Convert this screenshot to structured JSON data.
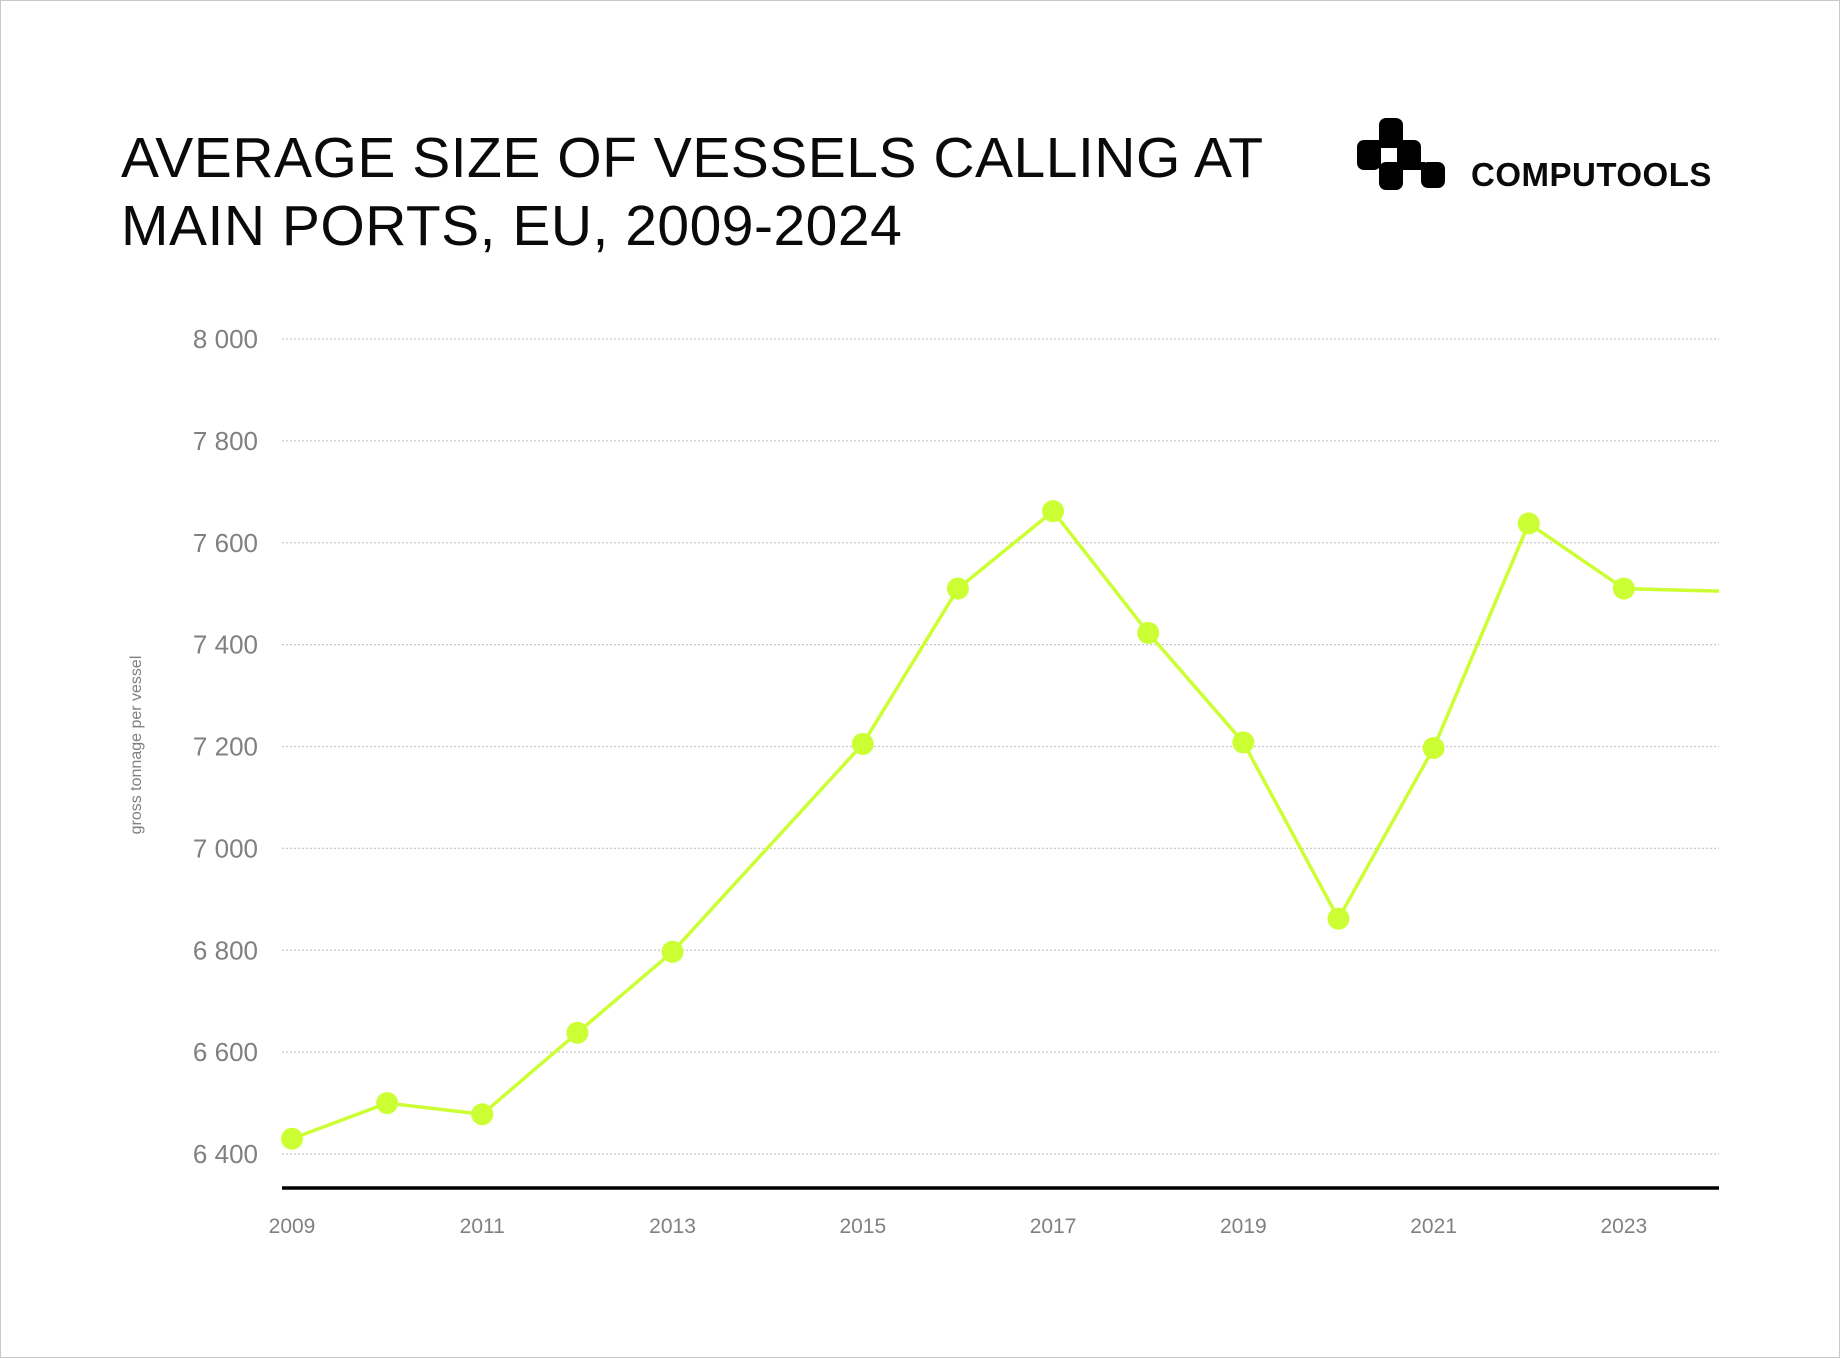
{
  "header": {
    "title_line1": "AVERAGE SIZE OF VESSELS CALLING AT",
    "title_line2": "MAIN PORTS, EU, 2009-2024"
  },
  "brand": {
    "name": "COMPUTOOLS",
    "icon": "computools-logo-icon"
  },
  "chart_data": {
    "type": "line",
    "title": "AVERAGE SIZE OF VESSELS CALLING AT MAIN PORTS, EU, 2009-2024",
    "xlabel": "",
    "ylabel": "gross tonnage per vessel",
    "x": [
      2009,
      2010,
      2011,
      2012,
      2013,
      2015,
      2016,
      2017,
      2018,
      2019,
      2020,
      2021,
      2022,
      2023,
      2024
    ],
    "values": [
      6430,
      6500,
      6478,
      6638,
      6797,
      7205,
      7510,
      7662,
      7423,
      7208,
      6862,
      7197,
      7638,
      7510,
      7505
    ],
    "markers": [
      true,
      true,
      true,
      true,
      true,
      true,
      true,
      true,
      true,
      true,
      true,
      true,
      true,
      true,
      false
    ],
    "xlim": [
      2009,
      2024
    ],
    "ylim": [
      6333,
      8000
    ],
    "yticks": [
      6400,
      6600,
      6800,
      7000,
      7200,
      7400,
      7600,
      7800,
      8000
    ],
    "ytick_labels": [
      "6 400",
      "6 600",
      "6 800",
      "7 000",
      "7 200",
      "7 400",
      "7 600",
      "7 800",
      "8 000"
    ],
    "xticks": [
      2009,
      2011,
      2013,
      2015,
      2017,
      2019,
      2021,
      2023
    ],
    "xtick_labels": [
      "2009",
      "2011",
      "2013",
      "2015",
      "2017",
      "2019",
      "2021",
      "2023"
    ],
    "grid": "horizontal dotted",
    "colors": {
      "line": "#ccff33",
      "grid": "#c8c8c8",
      "axis": "#000000",
      "text": "#808080"
    }
  }
}
